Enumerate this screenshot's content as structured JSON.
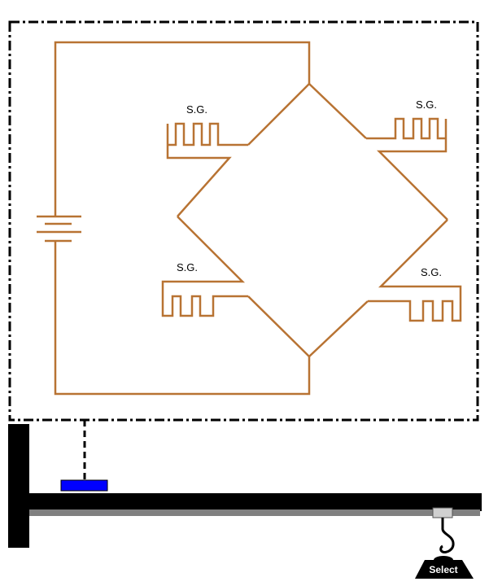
{
  "colors": {
    "wire": "#b87333",
    "frame": "#000000",
    "beam": "#000000",
    "beam_shadow": "#808080",
    "sensor": "#0000ff",
    "hook_block": "#d0d0d0",
    "weight": "#000000"
  },
  "gauges": [
    {
      "id": "top-left",
      "label": "S.G."
    },
    {
      "id": "top-right",
      "label": "S.G."
    },
    {
      "id": "bottom-left",
      "label": "S.G."
    },
    {
      "id": "bottom-right",
      "label": "S.G."
    }
  ],
  "icons": {
    "battery": "battery-icon",
    "weight": "weight-icon",
    "hook": "hook-icon"
  },
  "weight": {
    "label": "Select"
  }
}
